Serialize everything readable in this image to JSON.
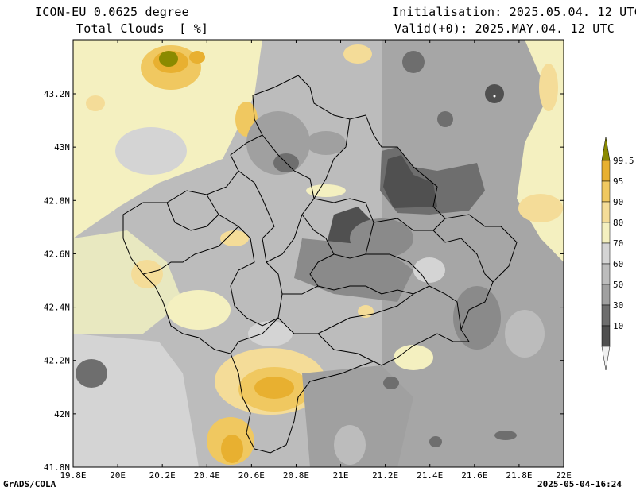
{
  "header": {
    "model": "ICON-EU 0.0625 degree",
    "variable": "Total Clouds  [ %]",
    "init": "Initialisation: 2025.05.04. 12 UTC",
    "valid": "Valid(+0): 2025.MAY.04. 12 UTC"
  },
  "map": {
    "x_ticks": [
      "19.8E",
      "20E",
      "20.2E",
      "20.4E",
      "20.6E",
      "20.8E",
      "21E",
      "21.2E",
      "21.4E",
      "21.6E",
      "21.8E",
      "22E"
    ],
    "y_ticks": [
      "43.2N",
      "43N",
      "42.8N",
      "42.6N",
      "42.4N",
      "42.2N",
      "42N",
      "41.8N"
    ]
  },
  "colorbar": {
    "levels": [
      "99.5",
      "95",
      "90",
      "80",
      "70",
      "60",
      "50",
      "30",
      "10"
    ],
    "colors": [
      "#8a8a00",
      "#e8b030",
      "#f0c860",
      "#f4dc98",
      "#f4f0c0",
      "#d4d4d4",
      "#bcbcbc",
      "#a0a0a0",
      "#6e6e6e",
      "#505050",
      "#f0f0f0"
    ]
  },
  "footer": {
    "left": "GrADS/COLA",
    "right": "2025-05-04-16:24"
  }
}
